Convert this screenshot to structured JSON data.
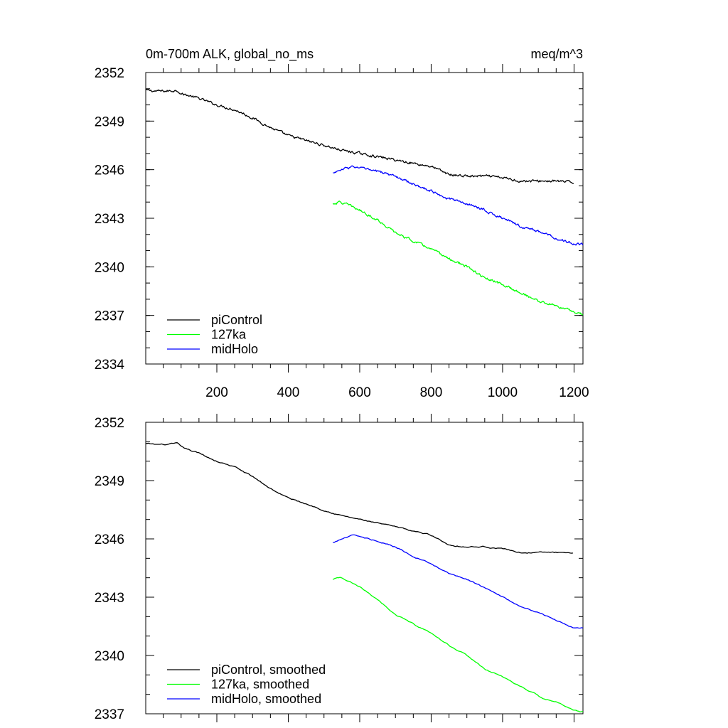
{
  "chart_data": [
    {
      "type": "line",
      "title_left": "0m-700m ALK, global_no_ms",
      "title_right": "meq/m^3",
      "xlim": [
        1,
        1225
      ],
      "ylim": [
        2334,
        2352
      ],
      "x_ticks": [
        200,
        400,
        600,
        800,
        1000,
        1200
      ],
      "x_tick_labels": [
        "200",
        "400",
        "600",
        "800",
        "1000",
        "1200"
      ],
      "y_ticks": [
        2334,
        2337,
        2340,
        2343,
        2346,
        2349,
        2352
      ],
      "y_tick_labels": [
        "2334",
        "2337",
        "2340",
        "2343",
        "2346",
        "2349",
        "2352"
      ],
      "legend_position": "bottom-left",
      "noise": "raw",
      "series": [
        {
          "name": "piControl",
          "color": "#000000",
          "x": [
            1,
            30,
            60,
            90,
            100,
            150,
            200,
            250,
            300,
            350,
            400,
            450,
            500,
            550,
            600,
            650,
            700,
            750,
            800,
            830,
            850,
            900,
            950,
            1000,
            1050,
            1100,
            1150,
            1200
          ],
          "y": [
            2350.9,
            2350.85,
            2350.85,
            2350.9,
            2350.7,
            2350.4,
            2350.0,
            2349.7,
            2349.2,
            2348.6,
            2348.1,
            2347.8,
            2347.5,
            2347.2,
            2347.0,
            2346.8,
            2346.6,
            2346.4,
            2346.2,
            2345.9,
            2345.7,
            2345.6,
            2345.6,
            2345.5,
            2345.3,
            2345.3,
            2345.3,
            2345.2
          ]
        },
        {
          "name": "127ka",
          "color": "#00ff00",
          "x": [
            525,
            545,
            570,
            600,
            650,
            700,
            750,
            800,
            850,
            900,
            950,
            1000,
            1050,
            1100,
            1150,
            1200,
            1225
          ],
          "y": [
            2343.9,
            2344.0,
            2343.8,
            2343.5,
            2342.9,
            2342.1,
            2341.6,
            2341.1,
            2340.5,
            2340.0,
            2339.3,
            2338.9,
            2338.4,
            2337.9,
            2337.6,
            2337.2,
            2337.1
          ]
        },
        {
          "name": "midHolo",
          "color": "#0000ff",
          "x": [
            525,
            550,
            580,
            600,
            650,
            700,
            750,
            800,
            850,
            900,
            950,
            1000,
            1050,
            1100,
            1150,
            1200,
            1225
          ],
          "y": [
            2345.8,
            2346.0,
            2346.2,
            2346.1,
            2345.9,
            2345.6,
            2345.1,
            2344.7,
            2344.2,
            2343.9,
            2343.5,
            2343.0,
            2342.5,
            2342.2,
            2341.8,
            2341.4,
            2341.4
          ]
        }
      ]
    },
    {
      "type": "line",
      "xlim": [
        1,
        1225
      ],
      "ylim": [
        2337,
        2352
      ],
      "x_ticks": [
        200,
        400,
        600,
        800,
        1000,
        1200
      ],
      "x_tick_labels": [],
      "y_ticks": [
        2337,
        2340,
        2343,
        2346,
        2349,
        2352
      ],
      "y_tick_labels": [
        "2337",
        "2340",
        "2343",
        "2346",
        "2349",
        "2352"
      ],
      "legend_position": "bottom-left",
      "noise": "smoothed",
      "series": [
        {
          "name": "piControl, smoothed",
          "color": "#000000",
          "x": [
            1,
            30,
            60,
            90,
            100,
            150,
            200,
            250,
            300,
            350,
            400,
            450,
            500,
            550,
            600,
            650,
            700,
            750,
            800,
            830,
            850,
            900,
            950,
            1000,
            1050,
            1100,
            1150,
            1200
          ],
          "y": [
            2350.9,
            2350.85,
            2350.85,
            2350.9,
            2350.7,
            2350.4,
            2350.0,
            2349.7,
            2349.2,
            2348.6,
            2348.1,
            2347.8,
            2347.5,
            2347.2,
            2347.0,
            2346.8,
            2346.6,
            2346.4,
            2346.2,
            2345.9,
            2345.7,
            2345.6,
            2345.6,
            2345.5,
            2345.3,
            2345.3,
            2345.3,
            2345.2
          ]
        },
        {
          "name": "127ka, smoothed",
          "color": "#00ff00",
          "x": [
            525,
            545,
            570,
            600,
            650,
            700,
            750,
            800,
            850,
            900,
            950,
            1000,
            1050,
            1100,
            1150,
            1200,
            1225
          ],
          "y": [
            2343.9,
            2344.0,
            2343.8,
            2343.5,
            2342.9,
            2342.1,
            2341.6,
            2341.1,
            2340.5,
            2340.0,
            2339.3,
            2338.9,
            2338.4,
            2337.9,
            2337.6,
            2337.2,
            2337.1
          ]
        },
        {
          "name": "midHolo, smoothed",
          "color": "#0000ff",
          "x": [
            525,
            550,
            580,
            600,
            650,
            700,
            750,
            800,
            850,
            900,
            950,
            1000,
            1050,
            1100,
            1150,
            1200,
            1225
          ],
          "y": [
            2345.8,
            2346.0,
            2346.2,
            2346.1,
            2345.9,
            2345.6,
            2345.1,
            2344.7,
            2344.2,
            2343.9,
            2343.5,
            2343.0,
            2342.5,
            2342.2,
            2341.8,
            2341.4,
            2341.4
          ]
        }
      ]
    }
  ]
}
